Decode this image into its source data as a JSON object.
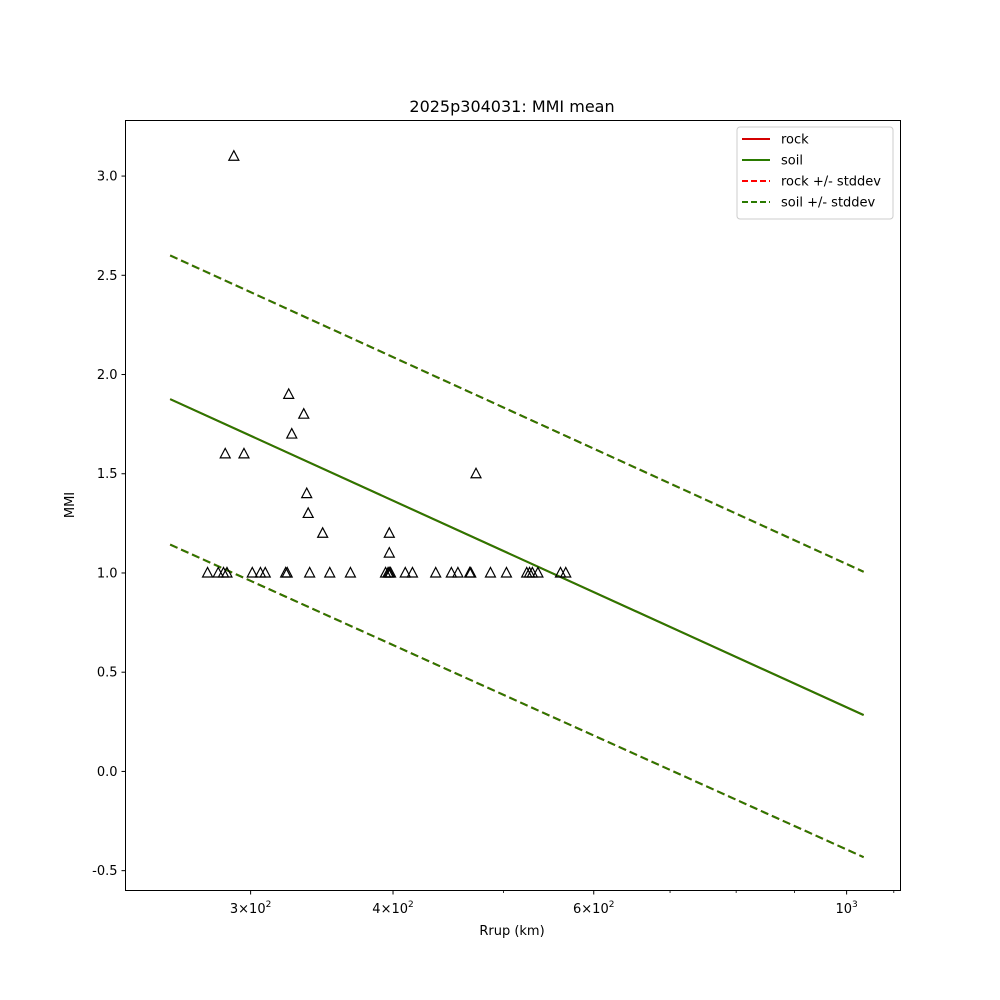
{
  "chart_data": {
    "type": "scatter",
    "title": "2025p304031: MMI mean",
    "xlabel": "Rrup (km)",
    "ylabel": "MMI",
    "xscale": "log",
    "xlim": [
      233,
      1115
    ],
    "ylim": [
      -0.6,
      3.28
    ],
    "grid": false,
    "legend_position": "top-right",
    "x_ticks": [
      {
        "value": 300,
        "mantissa": "3",
        "base": "10",
        "exp": "2"
      },
      {
        "value": 400,
        "mantissa": "4",
        "base": "10",
        "exp": "2"
      },
      {
        "value": 600,
        "mantissa": "6",
        "base": "10",
        "exp": "2"
      },
      {
        "value": 1000,
        "mantissa": "",
        "base": "10",
        "exp": "3"
      }
    ],
    "y_ticks": [
      "-0.5",
      "0.0",
      "0.5",
      "1.0",
      "1.5",
      "2.0",
      "2.5",
      "3.0"
    ],
    "series": [
      {
        "name": "rock",
        "style": "solid",
        "color": "#d40000",
        "x": [
          255,
          1035
        ],
        "y": [
          1.876,
          0.284
        ]
      },
      {
        "name": "soil",
        "style": "solid",
        "color": "#2a7a00",
        "x": [
          255,
          1035
        ],
        "y": [
          1.876,
          0.284
        ]
      },
      {
        "name": "rock +/- stddev",
        "style": "dashed",
        "color": "#ff0000",
        "x": [
          255,
          1035
        ],
        "y": [
          2.6,
          1.006
        ],
        "y2": [
          1.143,
          -0.432
        ]
      },
      {
        "name": "soil +/- stddev",
        "style": "dashed",
        "color": "#2a7a00",
        "x": [
          255,
          1035
        ],
        "y": [
          2.6,
          1.006
        ],
        "y2": [
          1.143,
          -0.432
        ]
      }
    ],
    "observations": {
      "marker": "triangle",
      "x": [
        290,
        285,
        296,
        324,
        326,
        334,
        336,
        337,
        347,
        397,
        397,
        473,
        275,
        281,
        284,
        286,
        301,
        306,
        309,
        322,
        323,
        338,
        352,
        367,
        394,
        396,
        397,
        398,
        410,
        416,
        436,
        450,
        456,
        467,
        468,
        487,
        503,
        524,
        527,
        530,
        536,
        561,
        567
      ],
      "y": [
        3.1,
        1.6,
        1.6,
        1.9,
        1.7,
        1.8,
        1.4,
        1.3,
        1.2,
        1.2,
        1.1,
        1.5,
        1.0,
        1.0,
        1.0,
        1.0,
        1.0,
        1.0,
        1.0,
        1.0,
        1.0,
        1.0,
        1.0,
        1.0,
        1.0,
        1.0,
        1.0,
        1.0,
        1.0,
        1.0,
        1.0,
        1.0,
        1.0,
        1.0,
        1.0,
        1.0,
        1.0,
        1.0,
        1.0,
        1.0,
        1.0,
        1.0,
        1.0
      ]
    }
  }
}
